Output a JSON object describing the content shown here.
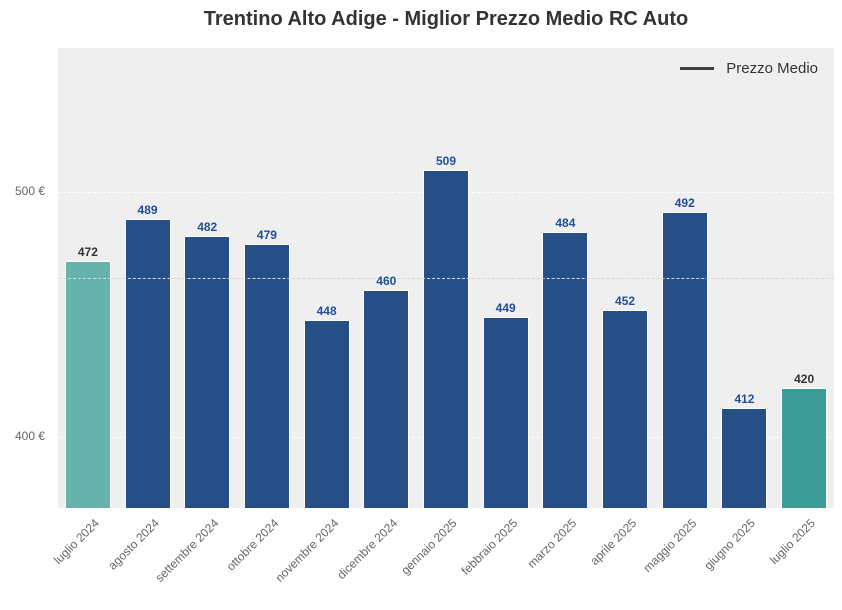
{
  "chart_data": {
    "type": "bar",
    "title": "Trentino Alto Adige - Miglior Prezzo Medio RC Auto",
    "xlabel": "",
    "ylabel": "",
    "categories": [
      "luglio 2024",
      "agosto 2024",
      "settembre 2024",
      "ottobre 2024",
      "novembre 2024",
      "dicembre 2024",
      "gennaio 2025",
      "febbraio 2025",
      "marzo 2025",
      "aprile 2025",
      "maggio 2025",
      "giugno 2025",
      "luglio 2025"
    ],
    "values": [
      472,
      489,
      482,
      479,
      448,
      460,
      509,
      449,
      484,
      452,
      492,
      412,
      420
    ],
    "value_labels": [
      "472",
      "489",
      "482",
      "479",
      "448",
      "460",
      "509",
      "449",
      "484",
      "452",
      "492",
      "412",
      "420"
    ],
    "ylim": [
      371,
      559
    ],
    "yticks": [
      400,
      500
    ],
    "ytick_labels": [
      "400 €",
      "500 €"
    ],
    "grid": true,
    "reference_lines": [
      {
        "name": "Prezzo Medio",
        "value": 465,
        "style": "dashed"
      }
    ],
    "legend": {
      "entries": [
        "Prezzo Medio"
      ],
      "position": "upper right"
    },
    "colors": {
      "default_bar": "#264e87",
      "first_bar": "#66b2ad",
      "last_bar": "#3d9c96",
      "default_label": "#1f4f99",
      "highlight_label": "#333333",
      "plot_bg": "#efefef"
    }
  },
  "legend_label": "Prezzo Medio"
}
